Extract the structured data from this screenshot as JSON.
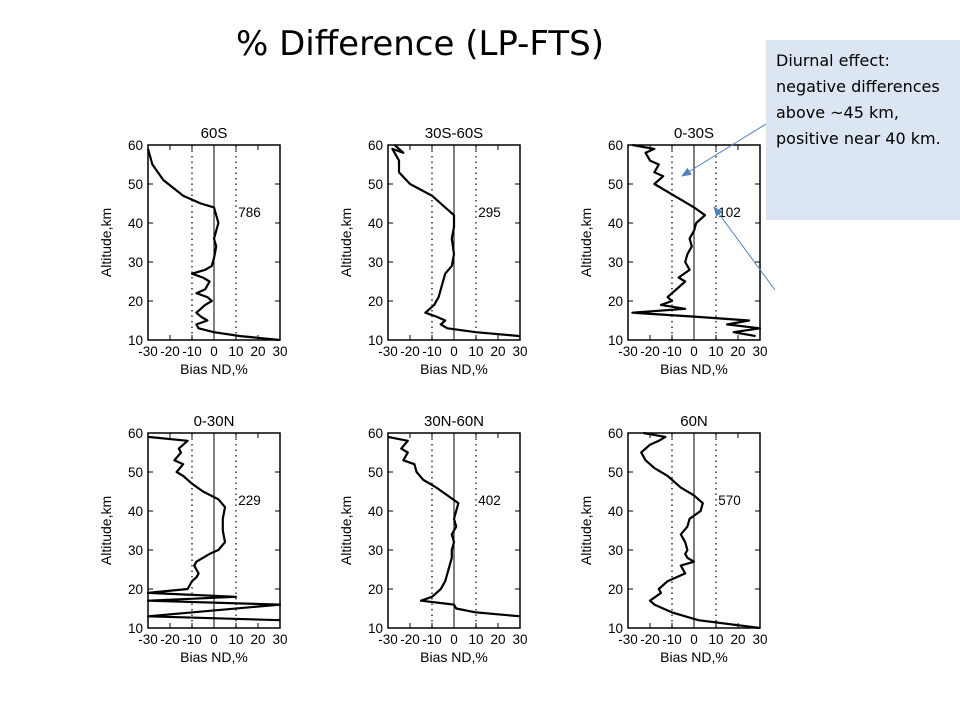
{
  "slide": {
    "title": "% Difference (LP-FTS)",
    "callout": "Diurnal effect: negative differences above ~45 km, positive near 40 km."
  },
  "colors": {
    "callout_bg": "#dce6f2",
    "arrow": "#4f81bd",
    "line": "#000000"
  },
  "chart_data": [
    {
      "type": "line",
      "title": "60S",
      "xlabel": "Bias ND,%",
      "ylabel": "Altitude,km",
      "xlim": [
        -30,
        30
      ],
      "ylim": [
        10,
        60
      ],
      "xticks": [
        -30,
        -20,
        -10,
        0,
        10,
        20,
        30
      ],
      "yticks": [
        10,
        20,
        30,
        40,
        50,
        60
      ],
      "dotted_x": [
        -10,
        10
      ],
      "solid_x": [
        0
      ],
      "annotation": "786",
      "series": [
        {
          "points": [
            [
              -30,
              59
            ],
            [
              -28,
              55
            ],
            [
              -23,
              51
            ],
            [
              -14,
              47
            ],
            [
              -6,
              45
            ],
            [
              0,
              44
            ],
            [
              1,
              42
            ],
            [
              2,
              40
            ],
            [
              1,
              38
            ],
            [
              0,
              36
            ],
            [
              1,
              34
            ],
            [
              0,
              31
            ],
            [
              -1,
              29
            ],
            [
              -4,
              28
            ],
            [
              -10,
              27
            ],
            [
              -5,
              26
            ],
            [
              -2,
              25
            ],
            [
              -4,
              23
            ],
            [
              -8,
              22
            ],
            [
              -3,
              21
            ],
            [
              -1,
              20
            ],
            [
              -4,
              19
            ],
            [
              -8,
              17
            ],
            [
              -6,
              16
            ],
            [
              -3,
              15
            ],
            [
              -8,
              14
            ],
            [
              -7,
              13
            ],
            [
              0,
              12
            ],
            [
              12,
              11
            ],
            [
              30,
              10
            ]
          ]
        }
      ]
    },
    {
      "type": "line",
      "title": "30S-60S",
      "xlabel": "Bias ND,%",
      "ylabel": "Altitude,km",
      "xlim": [
        -30,
        30
      ],
      "ylim": [
        10,
        60
      ],
      "xticks": [
        -30,
        -20,
        -10,
        0,
        10,
        20,
        30
      ],
      "yticks": [
        10,
        20,
        30,
        40,
        50,
        60
      ],
      "dotted_x": [
        -10,
        10
      ],
      "solid_x": [
        0
      ],
      "annotation": "295",
      "series": [
        {
          "points": [
            [
              -27,
              60
            ],
            [
              -23,
              58
            ],
            [
              -28,
              59
            ],
            [
              -25,
              56
            ],
            [
              -25,
              53
            ],
            [
              -20,
              50
            ],
            [
              -10,
              47
            ],
            [
              -4,
              44
            ],
            [
              0,
              42
            ],
            [
              0,
              39
            ],
            [
              -1,
              36
            ],
            [
              0,
              32
            ],
            [
              -1,
              29
            ],
            [
              -4,
              27
            ],
            [
              -5,
              25
            ],
            [
              -6,
              23
            ],
            [
              -7,
              21
            ],
            [
              -9,
              19
            ],
            [
              -13,
              17
            ],
            [
              -8,
              16
            ],
            [
              -4,
              15
            ],
            [
              -6,
              14
            ],
            [
              -3,
              13
            ],
            [
              10,
              12
            ],
            [
              30,
              11
            ]
          ]
        }
      ]
    },
    {
      "type": "line",
      "title": "0-30S",
      "xlabel": "Bias ND,%",
      "ylabel": "Altitude,km",
      "xlim": [
        -30,
        30
      ],
      "ylim": [
        10,
        60
      ],
      "xticks": [
        -30,
        -20,
        -10,
        0,
        10,
        20,
        30
      ],
      "yticks": [
        10,
        20,
        30,
        40,
        50,
        60
      ],
      "dotted_x": [
        -10,
        10
      ],
      "solid_x": [
        0
      ],
      "annotation": "102",
      "series": [
        {
          "points": [
            [
              -28,
              60
            ],
            [
              -18,
              59
            ],
            [
              -22,
              58
            ],
            [
              -20,
              56
            ],
            [
              -16,
              55
            ],
            [
              -18,
              53
            ],
            [
              -14,
              52
            ],
            [
              -18,
              50
            ],
            [
              -12,
              48
            ],
            [
              -6,
              46
            ],
            [
              0,
              44
            ],
            [
              5,
              42
            ],
            [
              1,
              40
            ],
            [
              0,
              38
            ],
            [
              -2,
              36
            ],
            [
              -1,
              34
            ],
            [
              -3,
              32
            ],
            [
              -4,
              30
            ],
            [
              -2,
              28
            ],
            [
              -7,
              26
            ],
            [
              -4,
              25
            ],
            [
              -8,
              23
            ],
            [
              -12,
              21
            ],
            [
              -10,
              20
            ],
            [
              -15,
              19
            ],
            [
              -4,
              18
            ],
            [
              -28,
              17
            ],
            [
              0,
              16
            ],
            [
              25,
              15
            ],
            [
              15,
              14
            ],
            [
              30,
              13
            ],
            [
              18,
              12
            ],
            [
              28,
              11
            ]
          ]
        }
      ]
    },
    {
      "type": "line",
      "title": "0-30N",
      "xlabel": "Bias ND,%",
      "ylabel": "Altitude,km",
      "xlim": [
        -30,
        30
      ],
      "ylim": [
        10,
        60
      ],
      "xticks": [
        -30,
        -20,
        -10,
        0,
        10,
        20,
        30
      ],
      "yticks": [
        10,
        20,
        30,
        40,
        50,
        60
      ],
      "dotted_x": [
        -10,
        10
      ],
      "solid_x": [
        0
      ],
      "annotation": "229",
      "series": [
        {
          "points": [
            [
              -30,
              59
            ],
            [
              -12,
              58
            ],
            [
              -16,
              56
            ],
            [
              -15,
              55
            ],
            [
              -18,
              53
            ],
            [
              -14,
              52
            ],
            [
              -17,
              50
            ],
            [
              -14,
              49
            ],
            [
              -10,
              47
            ],
            [
              -5,
              45
            ],
            [
              2,
              43
            ],
            [
              5,
              41
            ],
            [
              4,
              38
            ],
            [
              4,
              35
            ],
            [
              5,
              32
            ],
            [
              2,
              30
            ],
            [
              -2,
              29
            ],
            [
              -5,
              28
            ],
            [
              -8,
              27
            ],
            [
              -9,
              26
            ],
            [
              -7,
              24
            ],
            [
              -8,
              23
            ],
            [
              -10,
              22
            ],
            [
              -12,
              20
            ],
            [
              -30,
              19
            ],
            [
              10,
              18
            ],
            [
              -30,
              17
            ],
            [
              30,
              16
            ],
            [
              -30,
              13
            ],
            [
              30,
              12
            ]
          ]
        }
      ]
    },
    {
      "type": "line",
      "title": "30N-60N",
      "xlabel": "Bias ND,%",
      "ylabel": "Altitude,km",
      "xlim": [
        -30,
        30
      ],
      "ylim": [
        10,
        60
      ],
      "xticks": [
        -30,
        -20,
        -10,
        0,
        10,
        20,
        30
      ],
      "yticks": [
        10,
        20,
        30,
        40,
        50,
        60
      ],
      "dotted_x": [
        -10,
        10
      ],
      "solid_x": [
        0
      ],
      "annotation": "402",
      "series": [
        {
          "points": [
            [
              -30,
              59
            ],
            [
              -21,
              58
            ],
            [
              -24,
              56
            ],
            [
              -21,
              55
            ],
            [
              -23,
              53
            ],
            [
              -18,
              52
            ],
            [
              -17,
              50
            ],
            [
              -14,
              48
            ],
            [
              -8,
              46
            ],
            [
              -3,
              44
            ],
            [
              2,
              42
            ],
            [
              1,
              40
            ],
            [
              0,
              38
            ],
            [
              1,
              36
            ],
            [
              -1,
              34
            ],
            [
              0,
              32
            ],
            [
              -1,
              30
            ],
            [
              -1,
              28
            ],
            [
              -2,
              26
            ],
            [
              -3,
              24
            ],
            [
              -4,
              22
            ],
            [
              -5,
              21
            ],
            [
              -6,
              20
            ],
            [
              -8,
              19
            ],
            [
              -10,
              18
            ],
            [
              -15,
              17
            ],
            [
              0,
              16
            ],
            [
              1,
              15
            ],
            [
              10,
              14
            ],
            [
              30,
              13
            ]
          ]
        }
      ]
    },
    {
      "type": "line",
      "title": "60N",
      "xlabel": "Bias ND,%",
      "ylabel": "Altitude,km",
      "xlim": [
        -30,
        30
      ],
      "ylim": [
        10,
        60
      ],
      "xticks": [
        -30,
        -20,
        -10,
        0,
        10,
        20,
        30
      ],
      "yticks": [
        10,
        20,
        30,
        40,
        50,
        60
      ],
      "dotted_x": [
        -10,
        10
      ],
      "solid_x": [
        0
      ],
      "annotation": "570",
      "series": [
        {
          "points": [
            [
              -23,
              60
            ],
            [
              -13,
              59
            ],
            [
              -16,
              58
            ],
            [
              -20,
              57
            ],
            [
              -24,
              55
            ],
            [
              -22,
              53
            ],
            [
              -18,
              51
            ],
            [
              -12,
              49
            ],
            [
              -6,
              46
            ],
            [
              0,
              44
            ],
            [
              4,
              42
            ],
            [
              3,
              40
            ],
            [
              -2,
              38
            ],
            [
              -3,
              36
            ],
            [
              -6,
              34
            ],
            [
              -4,
              32
            ],
            [
              -3,
              30
            ],
            [
              -4,
              29
            ],
            [
              -3,
              28
            ],
            [
              0,
              27
            ],
            [
              -6,
              26
            ],
            [
              -4,
              24
            ],
            [
              -12,
              22
            ],
            [
              -16,
              20
            ],
            [
              -15,
              19
            ],
            [
              -20,
              17
            ],
            [
              -18,
              16
            ],
            [
              -14,
              15
            ],
            [
              -10,
              14
            ],
            [
              2,
              12
            ],
            [
              30,
              10
            ]
          ]
        }
      ]
    }
  ]
}
